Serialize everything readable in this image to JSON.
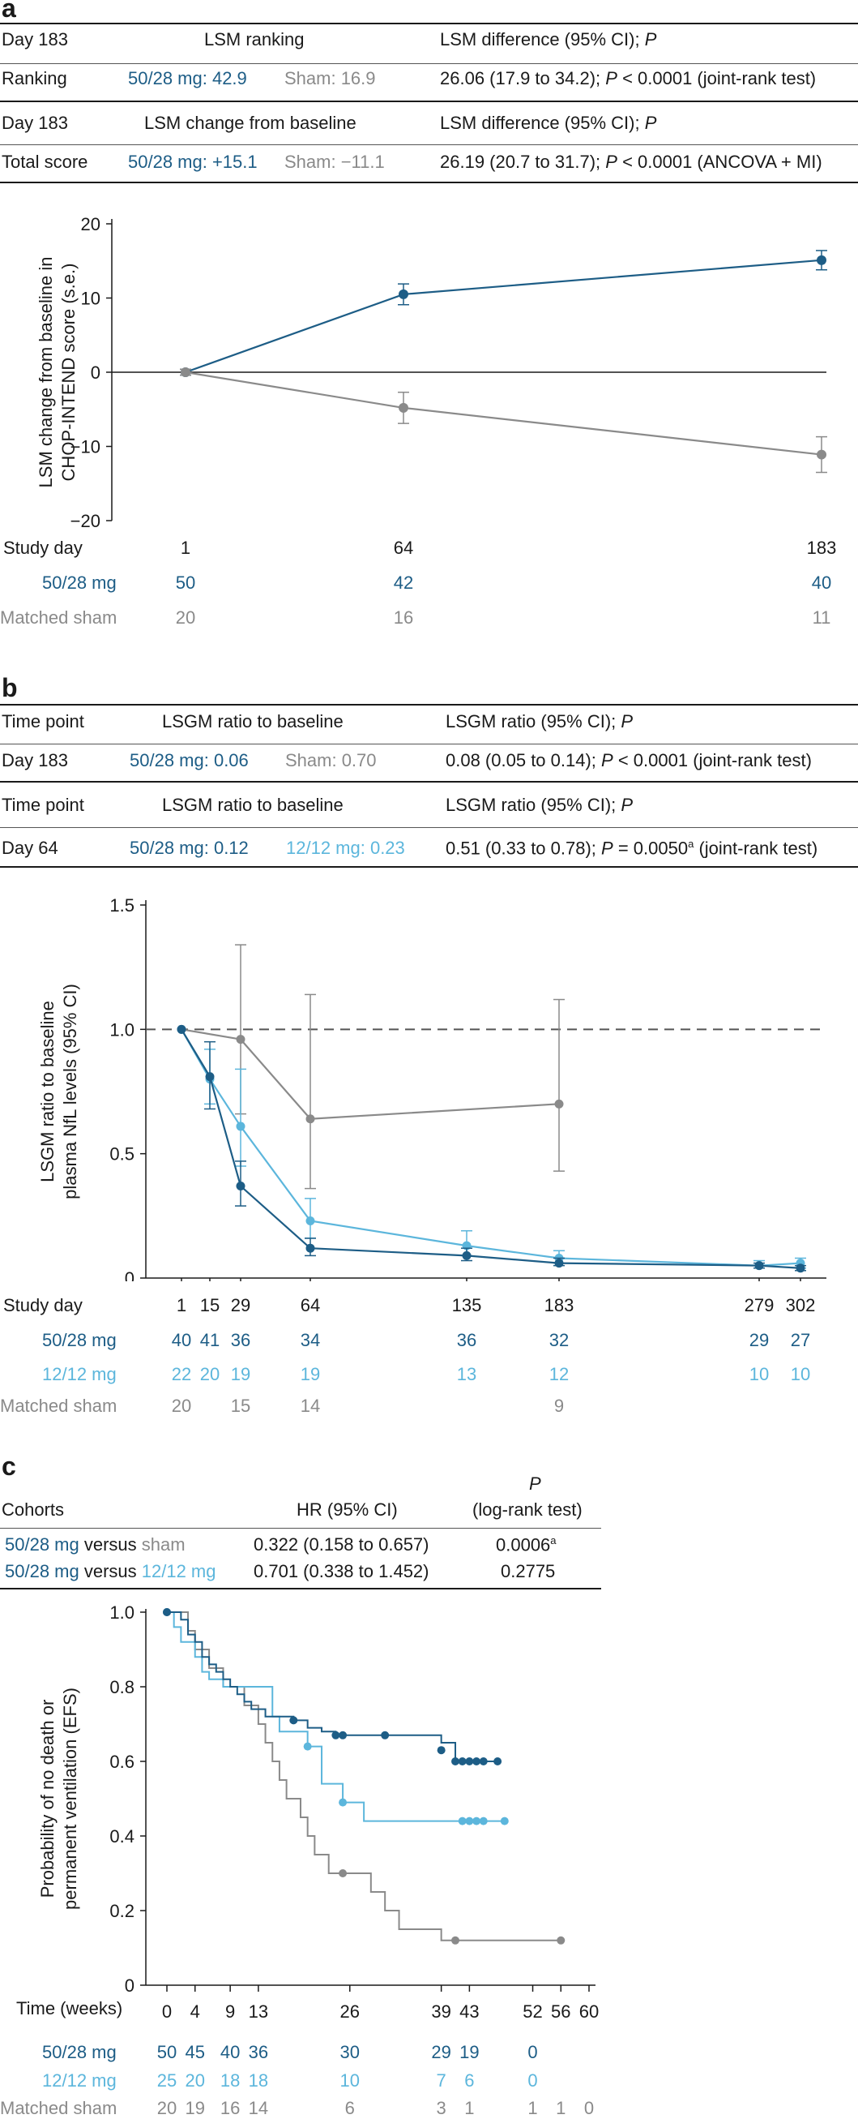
{
  "colors": {
    "dark": "#1d5d86",
    "light": "#5cb6dc",
    "grey": "#8a8a8a",
    "text": "#1a1a1a"
  },
  "panel_a": {
    "label": "a",
    "table1": {
      "h1": "Day 183",
      "h2": "LSM ranking",
      "h3": "LSM difference (95% CI); ",
      "h3p": "P",
      "r1": "Ranking",
      "r2a": "50/28 mg: 42.9",
      "r2b": "Sham: 16.9",
      "r3a": "26.06 (17.9 to 34.2); ",
      "r3p": "P",
      "r3b": " < 0.0001 (joint-rank test)"
    },
    "table2": {
      "h1": "Day 183",
      "h2": "LSM change from baseline",
      "h3": "LSM difference (95% CI); ",
      "h3p": "P",
      "r1": "Total score",
      "r2a": "50/28 mg: +15.1",
      "r2b": "Sham: −11.1",
      "r3a": "26.19 (20.7 to 31.7); ",
      "r3p": "P",
      "r3b": " < 0.0001 (ANCOVA + MI)"
    },
    "counts": {
      "rows": [
        "Study day",
        "50/28 mg",
        "Matched sham"
      ],
      "study_day": [
        "1",
        "64",
        "183"
      ],
      "dose_50_28": [
        "50",
        "42",
        "40"
      ],
      "sham": [
        "20",
        "16",
        "11"
      ]
    }
  },
  "panel_b": {
    "label": "b",
    "table1": {
      "h1": "Time point",
      "h2": "LSGM ratio to baseline",
      "h3": "LSGM ratio (95% CI); ",
      "h3p": "P",
      "r1": "Day 183",
      "r2a": "50/28 mg: 0.06",
      "r2b": "Sham: 0.70",
      "r3a": "0.08 (0.05 to 0.14); ",
      "r3p": "P",
      "r3b": " < 0.0001 (joint-rank test)"
    },
    "table2": {
      "h1": "Time point",
      "h2": "LSGM ratio to baseline",
      "h3": "LSGM ratio (95% CI); ",
      "h3p": "P",
      "r1": "Day 64",
      "r2a": "50/28 mg: 0.12",
      "r2b": "12/12 mg: 0.23",
      "r3a": "0.51 (0.33 to 0.78); ",
      "r3p": "P",
      "r3b": " = 0.0050",
      "r3sup": "a",
      "r3c": " (joint-rank test)"
    },
    "counts": {
      "rows": [
        "Study day",
        "50/28 mg",
        "12/12 mg",
        "Matched sham"
      ],
      "study_day": [
        "1",
        "15",
        "29",
        "64",
        "135",
        "183",
        "279",
        "302"
      ],
      "dose_50_28": [
        "40",
        "41",
        "36",
        "34",
        "36",
        "32",
        "29",
        "27"
      ],
      "dose_12_12": [
        "22",
        "20",
        "19",
        "19",
        "13",
        "12",
        "10",
        "10"
      ],
      "sham": [
        "20",
        "15",
        "14",
        "9"
      ]
    }
  },
  "panel_c": {
    "label": "c",
    "table": {
      "h1": "Cohorts",
      "h2": "HR (95% CI)",
      "h3a": "P",
      "h3b": "(log-rank test)",
      "r1a": "50/28 mg",
      "r1v": " versus ",
      "r1b": "sham",
      "r1hr": "0.322 (0.158 to 0.657)",
      "r1p": "0.0006",
      "r1sup": "a",
      "r2a": "50/28 mg",
      "r2v": " versus ",
      "r2b": "12/12 mg",
      "r2hr": "0.701 (0.338 to 1.452)",
      "r2p": "0.2775"
    },
    "counts": {
      "rows": [
        "Time (weeks)",
        "50/28 mg",
        "12/12 mg",
        "Matched sham"
      ],
      "dose_50_28": [
        "50",
        "45",
        "40",
        "36",
        "30",
        "29",
        "19",
        "0"
      ],
      "dose_12_12": [
        "25",
        "20",
        "18",
        "18",
        "10",
        "7",
        "6",
        "0"
      ],
      "sham": [
        "20",
        "19",
        "16",
        "14",
        "6",
        "3",
        "1",
        "1",
        "1",
        "0"
      ]
    }
  },
  "chart_data": [
    {
      "type": "line",
      "title": "",
      "xlabel": "Study day",
      "ylabel": "LSM change from baseline in CHOP-INTEND score (s.e.)",
      "ylim": [
        -20,
        20
      ],
      "yticks": [
        "−20",
        "−10",
        "0",
        "10",
        "20"
      ],
      "x": [
        1,
        64,
        183
      ],
      "series": [
        {
          "name": "50/28 mg",
          "values": [
            0,
            10.5,
            15.1
          ],
          "err": [
            0.4,
            1.4,
            1.3
          ]
        },
        {
          "name": "Matched sham",
          "values": [
            0,
            -4.8,
            -11.1
          ],
          "err": [
            0.4,
            2.1,
            2.4
          ]
        }
      ]
    },
    {
      "type": "line",
      "title": "",
      "xlabel": "Study day",
      "ylabel": "LSGM ratio to baseline plasma NfL levels (95% CI)",
      "ylim": [
        0,
        1.5
      ],
      "yticks": [
        "0",
        "0.5",
        "1.0",
        "1.5"
      ],
      "reference_line": 1.0,
      "series": [
        {
          "name": "50/28 mg",
          "x": [
            1,
            15,
            29,
            64,
            135,
            183,
            279,
            302
          ],
          "values": [
            1.0,
            0.81,
            0.37,
            0.12,
            0.09,
            0.06,
            0.05,
            0.04
          ],
          "lo": [
            1.0,
            0.68,
            0.29,
            0.09,
            0.07,
            0.05,
            0.04,
            0.03
          ],
          "hi": [
            1.0,
            0.95,
            0.47,
            0.16,
            0.12,
            0.08,
            0.06,
            0.05
          ]
        },
        {
          "name": "12/12 mg",
          "x": [
            1,
            15,
            29,
            64,
            135,
            183,
            279,
            302
          ],
          "values": [
            1.0,
            0.8,
            0.61,
            0.23,
            0.13,
            0.08,
            0.05,
            0.06
          ],
          "lo": [
            1.0,
            0.7,
            0.45,
            0.16,
            0.09,
            0.06,
            0.04,
            0.04
          ],
          "hi": [
            1.0,
            0.92,
            0.84,
            0.32,
            0.19,
            0.11,
            0.07,
            0.08
          ]
        },
        {
          "name": "Matched sham",
          "x": [
            1,
            29,
            64,
            183
          ],
          "values": [
            1.0,
            0.96,
            0.64,
            0.7
          ],
          "lo": [
            1.0,
            0.66,
            0.36,
            0.43
          ],
          "hi": [
            1.0,
            1.34,
            1.14,
            1.12
          ]
        }
      ]
    },
    {
      "type": "line",
      "title": "",
      "xlabel": "Time (weeks)",
      "ylabel": "Probability of no death or permanent ventilation (EFS)",
      "ylim": [
        0,
        1.0
      ],
      "yticks": [
        "0",
        "0.2",
        "0.4",
        "0.6",
        "0.8",
        "1.0"
      ],
      "xticks": [
        "0",
        "4",
        "9",
        "13",
        "26",
        "39",
        "43",
        "52",
        "56",
        "60"
      ],
      "series": [
        {
          "name": "50/28 mg",
          "x": [
            0,
            2,
            3,
            4,
            5,
            6,
            7,
            8,
            9,
            10,
            11,
            12,
            14,
            18,
            20,
            22,
            24,
            25,
            39,
            41,
            47
          ],
          "values": [
            1.0,
            0.98,
            0.94,
            0.92,
            0.88,
            0.86,
            0.84,
            0.82,
            0.8,
            0.78,
            0.76,
            0.74,
            0.72,
            0.71,
            0.69,
            0.68,
            0.67,
            0.67,
            0.65,
            0.6,
            0.6
          ]
        },
        {
          "name": "12/12 mg",
          "x": [
            0,
            1,
            2,
            4,
            5,
            6,
            8,
            10,
            15,
            16,
            20,
            22,
            25,
            28,
            48
          ],
          "values": [
            1.0,
            0.96,
            0.92,
            0.88,
            0.84,
            0.82,
            0.8,
            0.8,
            0.72,
            0.68,
            0.64,
            0.54,
            0.49,
            0.44,
            0.44
          ]
        },
        {
          "name": "Matched sham",
          "x": [
            0,
            3,
            4,
            6,
            8,
            11,
            13,
            14,
            15,
            16,
            17,
            19,
            20,
            21,
            23,
            24,
            25,
            26,
            29,
            31,
            33,
            39,
            41,
            43,
            56
          ],
          "values": [
            1.0,
            0.95,
            0.9,
            0.85,
            0.8,
            0.75,
            0.7,
            0.65,
            0.6,
            0.55,
            0.5,
            0.45,
            0.4,
            0.35,
            0.3,
            0.3,
            0.3,
            0.3,
            0.25,
            0.2,
            0.15,
            0.12,
            0.12,
            0.12,
            0.12
          ]
        }
      ]
    }
  ]
}
